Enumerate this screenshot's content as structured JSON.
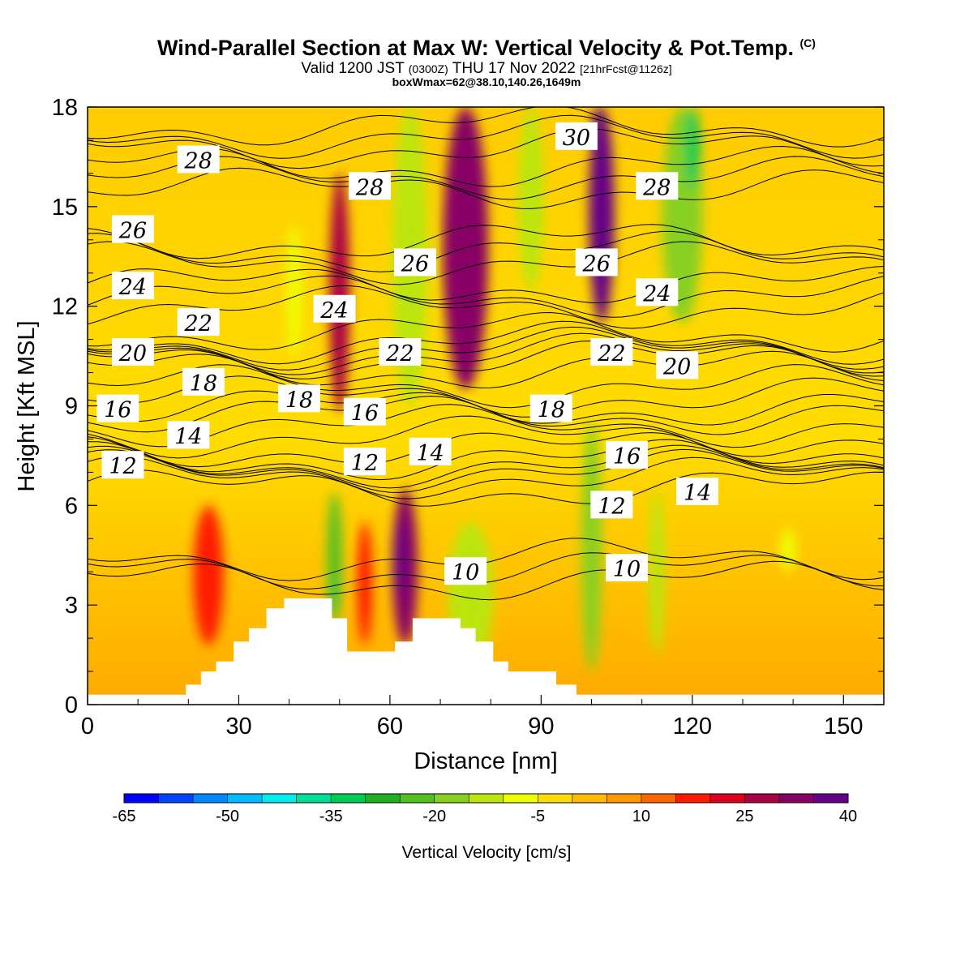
{
  "title": {
    "main": "Wind-Parallel Section at Max W: Vertical Velocity & Pot.Temp.",
    "copyright": "(C)",
    "valid_prefix": "Valid 1200 JST",
    "valid_utc": "(0300Z)",
    "valid_date": "THU 17 Nov 2022",
    "forecast": "[21hrFcst@1126z]",
    "box": "boxWmax=62@38.10,140.26,1649m"
  },
  "chart_data": {
    "type": "heatmap",
    "xlabel": "Distance [nm]",
    "ylabel": "Height [Kft MSL]",
    "xlim": [
      0,
      158
    ],
    "ylim": [
      0,
      18
    ],
    "x_ticks": [
      0,
      30,
      60,
      90,
      120,
      150
    ],
    "y_ticks": [
      0,
      3,
      6,
      9,
      12,
      15,
      18
    ],
    "colorbar": {
      "label": "Vertical Velocity [cm/s]",
      "tick_labels": [
        -65,
        -50,
        -35,
        -20,
        -5,
        10,
        25,
        40
      ],
      "colors": [
        "#0000ff",
        "#0044ff",
        "#0088ff",
        "#00bbff",
        "#00eeee",
        "#00dd99",
        "#00cc55",
        "#22b022",
        "#55c022",
        "#88d022",
        "#bbe611",
        "#eeff00",
        "#ffdd00",
        "#ffbb00",
        "#ff9900",
        "#ff6600",
        "#ff1a00",
        "#dd0022",
        "#aa0044",
        "#880066",
        "#660088"
      ]
    },
    "potential_temperature_labels": [
      {
        "text": "28",
        "x": 22,
        "y": 16.4
      },
      {
        "text": "28",
        "x": 56,
        "y": 15.6
      },
      {
        "text": "30",
        "x": 97,
        "y": 17.1
      },
      {
        "text": "28",
        "x": 113,
        "y": 15.6
      },
      {
        "text": "26",
        "x": 9,
        "y": 14.3
      },
      {
        "text": "26",
        "x": 65,
        "y": 13.3
      },
      {
        "text": "26",
        "x": 101,
        "y": 13.3
      },
      {
        "text": "24",
        "x": 9,
        "y": 12.6
      },
      {
        "text": "24",
        "x": 49,
        "y": 11.9
      },
      {
        "text": "24",
        "x": 113,
        "y": 12.4
      },
      {
        "text": "22",
        "x": 22,
        "y": 11.5
      },
      {
        "text": "22",
        "x": 62,
        "y": 10.6
      },
      {
        "text": "22",
        "x": 104,
        "y": 10.6
      },
      {
        "text": "20",
        "x": 9,
        "y": 10.6
      },
      {
        "text": "20",
        "x": 117,
        "y": 10.2
      },
      {
        "text": "18",
        "x": 23,
        "y": 9.7
      },
      {
        "text": "18",
        "x": 42,
        "y": 9.2
      },
      {
        "text": "18",
        "x": 92,
        "y": 8.9
      },
      {
        "text": "16",
        "x": 6,
        "y": 8.9
      },
      {
        "text": "16",
        "x": 55,
        "y": 8.8
      },
      {
        "text": "16",
        "x": 107,
        "y": 7.5
      },
      {
        "text": "14",
        "x": 20,
        "y": 8.1
      },
      {
        "text": "14",
        "x": 68,
        "y": 7.6
      },
      {
        "text": "14",
        "x": 121,
        "y": 6.4
      },
      {
        "text": "12",
        "x": 7,
        "y": 7.2
      },
      {
        "text": "12",
        "x": 55,
        "y": 7.3
      },
      {
        "text": "12",
        "x": 104,
        "y": 6.0
      },
      {
        "text": "10",
        "x": 75,
        "y": 4.0
      },
      {
        "text": "10",
        "x": 107,
        "y": 4.1
      }
    ],
    "terrain": [
      [
        0,
        0.3
      ],
      [
        19.5,
        0.3
      ],
      [
        19.5,
        0.6
      ],
      [
        22.5,
        0.6
      ],
      [
        22.5,
        1.0
      ],
      [
        25.5,
        1.0
      ],
      [
        25.5,
        1.3
      ],
      [
        29,
        1.3
      ],
      [
        29,
        1.9
      ],
      [
        32,
        1.9
      ],
      [
        32,
        2.3
      ],
      [
        35.5,
        2.3
      ],
      [
        35.5,
        2.9
      ],
      [
        39,
        2.9
      ],
      [
        39,
        3.2
      ],
      [
        48.5,
        3.2
      ],
      [
        48.5,
        2.6
      ],
      [
        51.5,
        2.6
      ],
      [
        51.5,
        1.6
      ],
      [
        61,
        1.6
      ],
      [
        61,
        1.9
      ],
      [
        64.5,
        1.9
      ],
      [
        64.5,
        2.6
      ],
      [
        74,
        2.6
      ],
      [
        74,
        2.3
      ],
      [
        77,
        2.3
      ],
      [
        77,
        1.9
      ],
      [
        80.5,
        1.9
      ],
      [
        80.5,
        1.3
      ],
      [
        83.5,
        1.3
      ],
      [
        83.5,
        1.0
      ],
      [
        93,
        1.0
      ],
      [
        93,
        0.6
      ],
      [
        97,
        0.6
      ],
      [
        97,
        0.3
      ],
      [
        158,
        0.3
      ]
    ],
    "velocity_cells": [
      {
        "x": 75,
        "w": 9,
        "y0": 9.5,
        "y1": 18,
        "v": 25
      },
      {
        "x": 102,
        "w": 5,
        "y0": 11.5,
        "y1": 18,
        "v": 30
      },
      {
        "x": 101,
        "w": 2,
        "y0": 15.5,
        "y1": 18,
        "v": 40
      },
      {
        "x": 50,
        "w": 4,
        "y0": 8.8,
        "y1": 16,
        "v": 22
      },
      {
        "x": 63,
        "w": 5,
        "y0": 1.8,
        "y1": 6.5,
        "v": 25
      },
      {
        "x": 62,
        "w": 2.2,
        "y0": 3.2,
        "y1": 5.6,
        "v": 40
      },
      {
        "x": 24,
        "w": 6,
        "y0": 1.8,
        "y1": 6.0,
        "v": 12
      },
      {
        "x": 55,
        "w": 3,
        "y0": 1.8,
        "y1": 5.5,
        "v": 12
      },
      {
        "x": 64,
        "w": 7,
        "y0": 9,
        "y1": 18,
        "v": -20
      },
      {
        "x": 88,
        "w": 5,
        "y0": 12.5,
        "y1": 18,
        "v": -20
      },
      {
        "x": 118,
        "w": 8,
        "y0": 11.5,
        "y1": 18,
        "v": -25
      },
      {
        "x": 120,
        "w": 3,
        "y0": 15.5,
        "y1": 18,
        "v": -40
      },
      {
        "x": 49,
        "w": 3,
        "y0": 2.4,
        "y1": 6.4,
        "v": -28
      },
      {
        "x": 48.7,
        "w": 1.2,
        "y0": 2.8,
        "y1": 3.9,
        "v": -40
      },
      {
        "x": 76,
        "w": 9,
        "y0": 1.2,
        "y1": 5.5,
        "v": -20
      },
      {
        "x": 100,
        "w": 4,
        "y0": 1.0,
        "y1": 8.5,
        "v": -22
      },
      {
        "x": 113,
        "w": 3,
        "y0": 1.5,
        "y1": 6.5,
        "v": -18
      },
      {
        "x": 41,
        "w": 3,
        "y0": 10.5,
        "y1": 14.5,
        "v": -15
      },
      {
        "x": 139,
        "w": 3,
        "y0": 4.0,
        "y1": 5.3,
        "v": -12
      }
    ]
  }
}
